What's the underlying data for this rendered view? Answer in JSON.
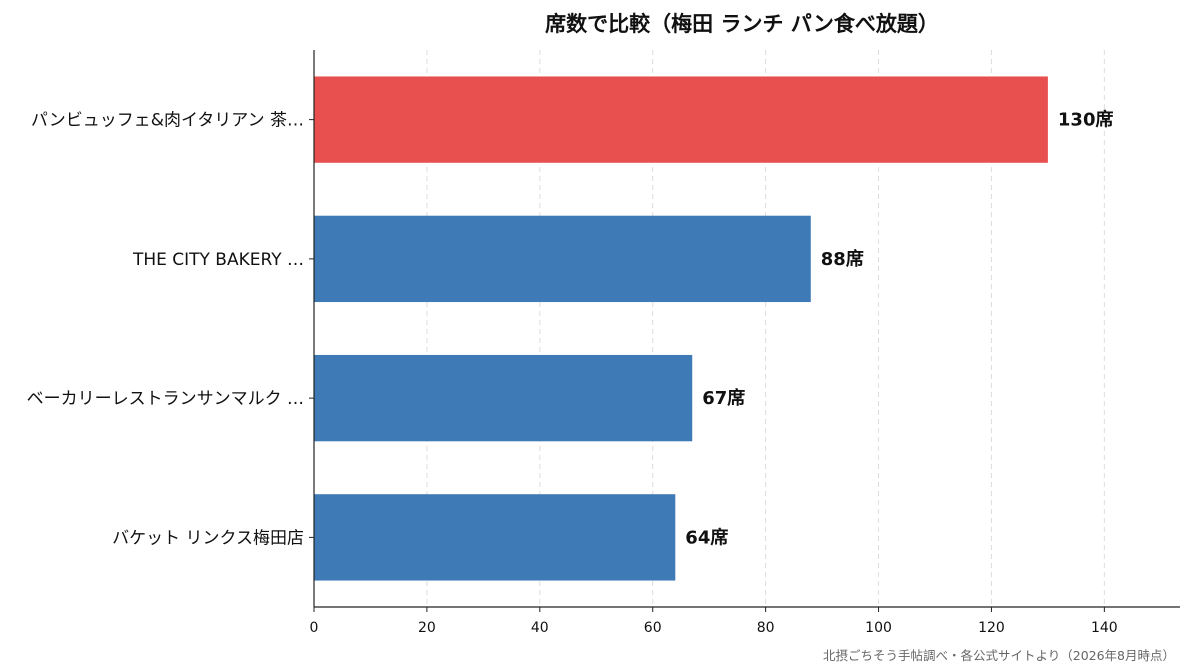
{
  "chart_data": {
    "type": "bar",
    "orientation": "horizontal",
    "title": "席数で比較（梅田 ランチ パン食べ放題）",
    "xlabel": "",
    "ylabel": "",
    "xlim": [
      0,
      153.4
    ],
    "xticks": [
      0,
      20,
      40,
      60,
      80,
      100,
      120,
      140
    ],
    "grid": "x-dashed",
    "categories": [
      "パンビュッフェ&肉イタリアン 茶…",
      "THE CITY BAKERY …",
      "ベーカリーレストランサンマルク …",
      "バケット リンクス梅田店"
    ],
    "values": [
      130,
      88,
      67,
      64
    ],
    "value_labels": [
      "130席",
      "88席",
      "67席",
      "64席"
    ],
    "colors": [
      "#e85050",
      "#3e7ab6",
      "#3e7ab6",
      "#3e7ab6"
    ],
    "source_note": "北摂ごちそう手帖調べ・各公式サイトより（2026年8月時点）"
  }
}
